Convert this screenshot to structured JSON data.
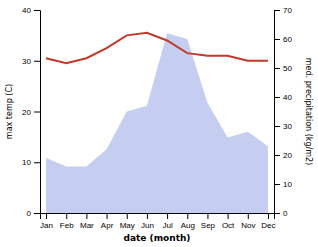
{
  "chart_data": {
    "type": "line",
    "xlabel": "date (month)",
    "ylabel": "max temp (C)",
    "y2label": "med. precipitation (kg/m2)",
    "categories": [
      "Jan",
      "Feb",
      "Mar",
      "Apr",
      "May",
      "Jun",
      "Jul",
      "Aug",
      "Sep",
      "Oct",
      "Nov",
      "Dec"
    ],
    "series": [
      {
        "type": "area",
        "axis": "y2",
        "color": "#c5cef0",
        "values": [
          19,
          16,
          16,
          22,
          35,
          37,
          62,
          60,
          38,
          26,
          28,
          23
        ]
      },
      {
        "type": "line",
        "color": "#c0392b",
        "values": [
          30.5,
          29.5,
          30.5,
          32.5,
          35.0,
          35.5,
          34.0,
          31.5,
          31.0,
          31.0,
          30.0,
          30.0
        ]
      }
    ],
    "ylim": [
      0,
      40
    ],
    "yticks": [
      0,
      10,
      20,
      30,
      40
    ],
    "y2lim": [
      0,
      70
    ],
    "y2ticks": [
      0,
      10,
      20,
      30,
      40,
      50,
      60,
      70
    ],
    "grid": false
  }
}
